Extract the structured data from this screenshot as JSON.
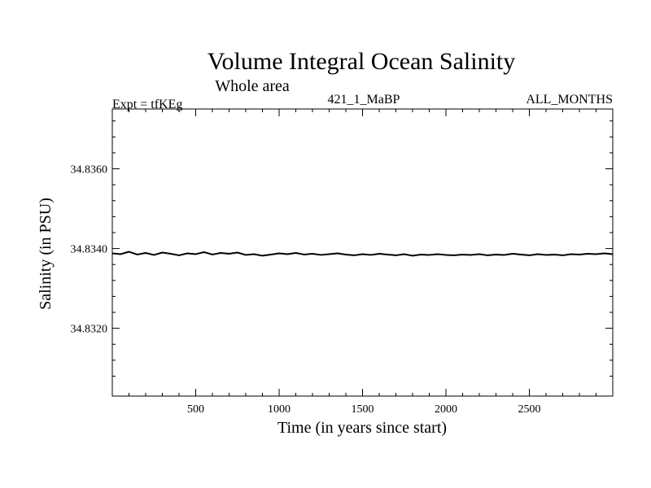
{
  "chart_data": {
    "type": "line",
    "title": "Volume Integral Ocean Salinity",
    "subtitle": "Whole area",
    "annotations": {
      "experiment": "Expt = tfKEg",
      "run": "421_1_MaBP",
      "period": "ALL_MONTHS"
    },
    "xlabel": "Time (in years since start)",
    "ylabel": "Salinity (in PSU)",
    "xlim": [
      0,
      3000
    ],
    "ylim": [
      34.8303,
      34.8375
    ],
    "x_ticks": [
      500,
      1000,
      1500,
      2000,
      2500
    ],
    "x_tick_labels": [
      "500",
      "1000",
      "1500",
      "2000",
      "2500"
    ],
    "y_ticks": [
      34.832,
      34.834,
      34.836
    ],
    "y_tick_labels": [
      "34.8320",
      "34.8340",
      "34.8360"
    ],
    "grid": false,
    "series": [
      {
        "x": [
          0,
          50,
          100,
          150,
          200,
          250,
          300,
          350,
          400,
          450,
          500,
          550,
          600,
          650,
          700,
          750,
          800,
          850,
          900,
          950,
          1000,
          1050,
          1100,
          1150,
          1200,
          1250,
          1300,
          1350,
          1400,
          1450,
          1500,
          1550,
          1600,
          1650,
          1700,
          1750,
          1800,
          1850,
          1900,
          1950,
          2000,
          2050,
          2100,
          2150,
          2200,
          2250,
          2300,
          2350,
          2400,
          2450,
          2500,
          2550,
          2600,
          2650,
          2700,
          2750,
          2800,
          2850,
          2900,
          2950,
          3000
        ],
        "values": [
          34.83388,
          34.83386,
          34.83392,
          34.83385,
          34.83389,
          34.83384,
          34.8339,
          34.83387,
          34.83383,
          34.83388,
          34.83386,
          34.83391,
          34.83385,
          34.83389,
          34.83387,
          34.8339,
          34.83384,
          34.83386,
          34.83382,
          34.83385,
          34.83388,
          34.83386,
          34.83389,
          34.83385,
          34.83387,
          34.83384,
          34.83386,
          34.83388,
          34.83385,
          34.83383,
          34.83386,
          34.83384,
          34.83387,
          34.83385,
          34.83383,
          34.83386,
          34.83382,
          34.83385,
          34.83384,
          34.83386,
          34.83384,
          34.83383,
          34.83385,
          34.83384,
          34.83386,
          34.83383,
          34.83385,
          34.83384,
          34.83387,
          34.83385,
          34.83383,
          34.83386,
          34.83384,
          34.83385,
          34.83383,
          34.83386,
          34.83385,
          34.83387,
          34.83386,
          34.83388,
          34.83386
        ]
      }
    ]
  }
}
